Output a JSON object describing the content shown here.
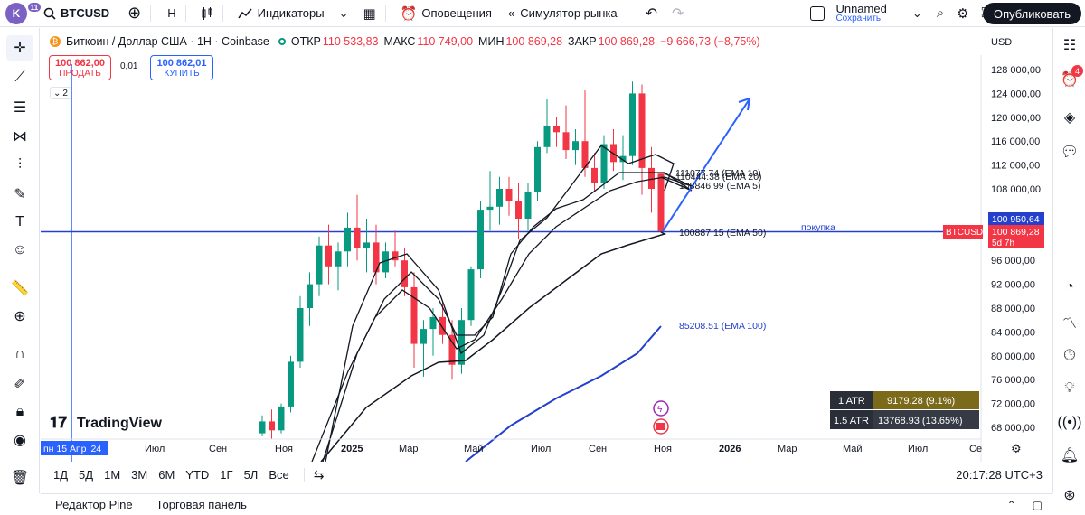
{
  "topbar": {
    "avatar_letter": "K",
    "avatar_badge": "11",
    "symbol": "BTCUSD",
    "interval": "H",
    "indicators": "Индикаторы",
    "alerts": "Оповещения",
    "replay": "Симулятор рынка",
    "layout_name": "Unnamed",
    "layout_status": "Сохранить",
    "publish": "Опубликовать"
  },
  "legend": {
    "title": "Биткоин / Доллар США · 1H · Coinbase",
    "open_label": "ОТКР",
    "open": "110 533,83",
    "high_label": "МАКС",
    "high": "110 749,00",
    "low_label": "МИН",
    "low": "100 869,28",
    "close_label": "ЗАКР",
    "close": "100 869,28",
    "change": "−9 666,73 (−8,75%)"
  },
  "trade": {
    "sell_price": "100 862,00",
    "sell_label": "ПРОДАТЬ",
    "spread": "0,01",
    "buy_price": "100 862,01",
    "buy_label": "КУПИТЬ"
  },
  "indicator_toggle": "2",
  "currency": "USD",
  "price_axis": {
    "ticks": [
      "128 000,00",
      "124 000,00",
      "120 000,00",
      "116 000,00",
      "112 000,00",
      "108 000,00",
      "100 950,64",
      "100 869,28",
      "96 000,00",
      "92 000,00",
      "88 000,00",
      "84 000,00",
      "80 000,00",
      "76 000,00",
      "72 000,00",
      "68 000,00"
    ],
    "symbol_tag": "BTCUSD",
    "countdown": "5d 7h"
  },
  "time_axis": {
    "start_label": "пн 15 Апр '24",
    "labels": [
      "Июл",
      "Сен",
      "Ноя",
      "2025",
      "Мар",
      "Май",
      "Июл",
      "Сен",
      "Ноя",
      "2026",
      "Мар",
      "Май",
      "Июл",
      "Се"
    ]
  },
  "ema_labels": {
    "ema10": "111077.74 (EMA 10)",
    "ema20": "110444.38 (EMA 20)",
    "ema5": "108846.99 (EMA 5)",
    "ema50": "100887.15 (EMA 50)",
    "ema100": "85208.51 (EMA 100)",
    "buy_note": "покупка"
  },
  "atr": {
    "row1_label": "1 ATR",
    "row1_value": "9179.28 (9.1%)",
    "row2_label": "1.5 ATR",
    "row2_value": "13768.93 (13.65%)"
  },
  "watermark": "TradingView",
  "bottom": {
    "ranges": [
      "1Д",
      "5Д",
      "1М",
      "3М",
      "6М",
      "YTD",
      "1Г",
      "5Л",
      "Все"
    ],
    "clock": "20:17:28 UTC+3"
  },
  "footer": {
    "tab1": "Редактор Pine",
    "tab2": "Торговая панель"
  },
  "right_badge": "4",
  "colors": {
    "up": "#089981",
    "down": "#f23645",
    "blue": "#2962ff",
    "ema_line": "#131722",
    "ema100": "#2440cc"
  },
  "chart_data": {
    "type": "candlestick",
    "price_min": 66000,
    "price_max": 130000,
    "candles": [
      {
        "o": 67000,
        "h": 70000,
        "l": 66500,
        "c": 69000
      },
      {
        "o": 69000,
        "h": 71000,
        "l": 66000,
        "c": 67500
      },
      {
        "o": 67500,
        "h": 72000,
        "l": 67000,
        "c": 71500
      },
      {
        "o": 71500,
        "h": 80000,
        "l": 70500,
        "c": 79000
      },
      {
        "o": 79000,
        "h": 90000,
        "l": 78000,
        "c": 88000
      },
      {
        "o": 88000,
        "h": 94000,
        "l": 85000,
        "c": 92000
      },
      {
        "o": 92000,
        "h": 100000,
        "l": 90000,
        "c": 98500
      },
      {
        "o": 98500,
        "h": 102000,
        "l": 92000,
        "c": 95000
      },
      {
        "o": 95000,
        "h": 99000,
        "l": 91000,
        "c": 97500
      },
      {
        "o": 97500,
        "h": 104000,
        "l": 95000,
        "c": 101500
      },
      {
        "o": 101500,
        "h": 107000,
        "l": 96000,
        "c": 98000
      },
      {
        "o": 98000,
        "h": 103000,
        "l": 94000,
        "c": 99000
      },
      {
        "o": 99000,
        "h": 102000,
        "l": 92000,
        "c": 94000
      },
      {
        "o": 94000,
        "h": 99000,
        "l": 93000,
        "c": 97500
      },
      {
        "o": 97500,
        "h": 101000,
        "l": 95000,
        "c": 96000
      },
      {
        "o": 96000,
        "h": 98000,
        "l": 90000,
        "c": 91500
      },
      {
        "o": 91500,
        "h": 94000,
        "l": 78000,
        "c": 82000
      },
      {
        "o": 82000,
        "h": 86000,
        "l": 76500,
        "c": 84500
      },
      {
        "o": 84500,
        "h": 88000,
        "l": 80000,
        "c": 86500
      },
      {
        "o": 86500,
        "h": 89000,
        "l": 82000,
        "c": 83500
      },
      {
        "o": 83500,
        "h": 86000,
        "l": 76000,
        "c": 78500
      },
      {
        "o": 78500,
        "h": 88000,
        "l": 77000,
        "c": 86000
      },
      {
        "o": 86000,
        "h": 95000,
        "l": 85000,
        "c": 94500
      },
      {
        "o": 94500,
        "h": 106000,
        "l": 93000,
        "c": 104500
      },
      {
        "o": 104500,
        "h": 111000,
        "l": 101000,
        "c": 105000
      },
      {
        "o": 105000,
        "h": 110000,
        "l": 102000,
        "c": 108000
      },
      {
        "o": 108000,
        "h": 110000,
        "l": 103500,
        "c": 106000
      },
      {
        "o": 106000,
        "h": 109000,
        "l": 99500,
        "c": 103000
      },
      {
        "o": 103000,
        "h": 109000,
        "l": 101000,
        "c": 107500
      },
      {
        "o": 107500,
        "h": 116000,
        "l": 106000,
        "c": 115000
      },
      {
        "o": 115000,
        "h": 123000,
        "l": 114000,
        "c": 118500
      },
      {
        "o": 118500,
        "h": 120000,
        "l": 115000,
        "c": 117500
      },
      {
        "o": 117500,
        "h": 122000,
        "l": 113000,
        "c": 114500
      },
      {
        "o": 114500,
        "h": 118000,
        "l": 112000,
        "c": 116000
      },
      {
        "o": 116000,
        "h": 124500,
        "l": 110000,
        "c": 111500
      },
      {
        "o": 111500,
        "h": 114000,
        "l": 107500,
        "c": 109000
      },
      {
        "o": 109000,
        "h": 117000,
        "l": 108000,
        "c": 115500
      },
      {
        "o": 115500,
        "h": 118000,
        "l": 111000,
        "c": 112500
      },
      {
        "o": 112500,
        "h": 117000,
        "l": 109500,
        "c": 113500
      },
      {
        "o": 113500,
        "h": 126000,
        "l": 112000,
        "c": 124000
      },
      {
        "o": 124000,
        "h": 125500,
        "l": 107000,
        "c": 111500
      },
      {
        "o": 111500,
        "h": 115000,
        "l": 104000,
        "c": 108000
      },
      {
        "o": 110533.83,
        "h": 110749,
        "l": 100869.28,
        "c": 100869.28
      }
    ]
  }
}
